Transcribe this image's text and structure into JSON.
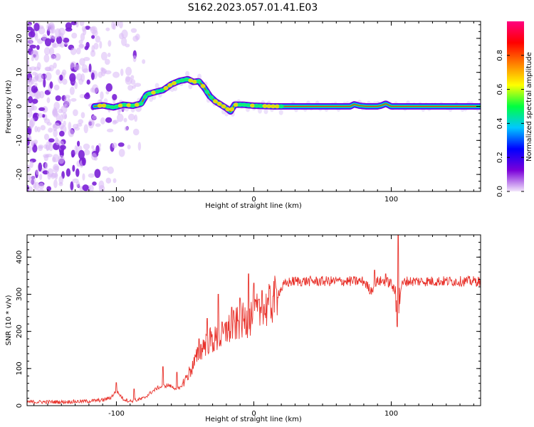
{
  "figure": {
    "title": "S162.2023.057.01.41.E03"
  },
  "chart_data": [
    {
      "type": "heatmap",
      "xlabel": "Height of straight line (km)",
      "ylabel": "Frequency (Hz)",
      "xlim": [
        -165,
        165
      ],
      "ylim": [
        -25,
        25
      ],
      "xticks": [
        -100,
        0,
        100
      ],
      "xtick_labels": [
        "-100",
        "0",
        "100"
      ],
      "yticks": [
        -20,
        -10,
        0,
        10,
        20
      ],
      "ytick_labels": [
        "-20",
        "-10",
        "0",
        "10",
        "20"
      ],
      "colorbar": {
        "label": "Normalized spectral amplitude",
        "range": [
          0,
          1
        ],
        "ticks": [
          0.0,
          0.2,
          0.4,
          0.6,
          0.8
        ],
        "tick_labels": [
          "0.0",
          "0.2",
          "0.4",
          "0.6",
          "0.8"
        ],
        "colors": [
          "#f2e6fb",
          "#7a00d9",
          "#0000ff",
          "#00c8ff",
          "#00ff40",
          "#ffff00",
          "#ff8000",
          "#ff0000",
          "#ff0080"
        ]
      },
      "trace": {
        "name": "",
        "x": [
          -116,
          -110,
          -102,
          -95,
          -88,
          -82,
          -78,
          -72,
          -66,
          -60,
          -54,
          -48,
          -44,
          -40,
          -36,
          -32,
          -28,
          -24,
          -20,
          -17,
          -14,
          -8,
          0,
          15,
          70,
          73,
          77,
          82,
          90,
          93,
          96,
          100,
          165
        ],
        "freq": [
          0,
          0.3,
          -0.3,
          0.5,
          0.2,
          0.8,
          3.5,
          4.2,
          4.8,
          6.5,
          7.5,
          8,
          7.2,
          7.4,
          5.5,
          3,
          1.5,
          0.5,
          -0.5,
          -1.5,
          0.5,
          0.5,
          0.2,
          0,
          0,
          0.6,
          0.2,
          0,
          0,
          0.3,
          0.8,
          0,
          0
        ]
      },
      "noise_region_km": [
        -165,
        -80
      ]
    },
    {
      "type": "line",
      "xlabel": "Height of straight line (km)",
      "ylabel": "SNR (10 * v/v)",
      "xlim": [
        -165,
        165
      ],
      "ylim": [
        0,
        460
      ],
      "xticks": [
        -100,
        0,
        100
      ],
      "xtick_labels": [
        "-100",
        "0",
        "100"
      ],
      "yticks": [
        0,
        100,
        200,
        300,
        400
      ],
      "ytick_labels": [
        "0",
        "100",
        "200",
        "300",
        "400"
      ],
      "color": "#e8322b",
      "series": [
        {
          "name": "",
          "x": [
            -165,
            -140,
            -120,
            -110,
            -104,
            -100,
            -95,
            -90,
            -85,
            -80,
            -75,
            -70,
            -66,
            -62,
            -58,
            -54,
            -50,
            -46,
            -42,
            -38,
            -34,
            -30,
            -26,
            -22,
            -18,
            -14,
            -10,
            -6,
            -2,
            2,
            6,
            10,
            14,
            18,
            22,
            26,
            30,
            40,
            50,
            60,
            70,
            80,
            85,
            90,
            95,
            100,
            103,
            105,
            107,
            110,
            120,
            140,
            165
          ],
          "values": [
            10,
            10,
            12,
            15,
            22,
            40,
            18,
            12,
            15,
            20,
            35,
            48,
            52,
            55,
            48,
            45,
            70,
            95,
            125,
            155,
            175,
            175,
            180,
            190,
            205,
            215,
            225,
            230,
            240,
            250,
            255,
            265,
            280,
            305,
            325,
            333,
            335,
            335,
            335,
            335,
            335,
            335,
            310,
            335,
            335,
            330,
            300,
            240,
            320,
            335,
            335,
            335,
            335
          ],
          "spikes": [
            {
              "x": -100,
              "y": 62
            },
            {
              "x": -87,
              "y": 45
            },
            {
              "x": -66,
              "y": 105
            },
            {
              "x": -56,
              "y": 90
            },
            {
              "x": -40,
              "y": 180
            },
            {
              "x": -34,
              "y": 235
            },
            {
              "x": -26,
              "y": 300
            },
            {
              "x": -20,
              "y": 225
            },
            {
              "x": -16,
              "y": 265
            },
            {
              "x": -10,
              "y": 290
            },
            {
              "x": -4,
              "y": 355
            },
            {
              "x": 0,
              "y": 330
            },
            {
              "x": 3,
              "y": 285
            },
            {
              "x": 6,
              "y": 310
            },
            {
              "x": 10,
              "y": 290
            },
            {
              "x": 14,
              "y": 295
            },
            {
              "x": 88,
              "y": 365
            },
            {
              "x": 96,
              "y": 355
            },
            {
              "x": 105,
              "y": 460
            }
          ]
        }
      ]
    }
  ]
}
